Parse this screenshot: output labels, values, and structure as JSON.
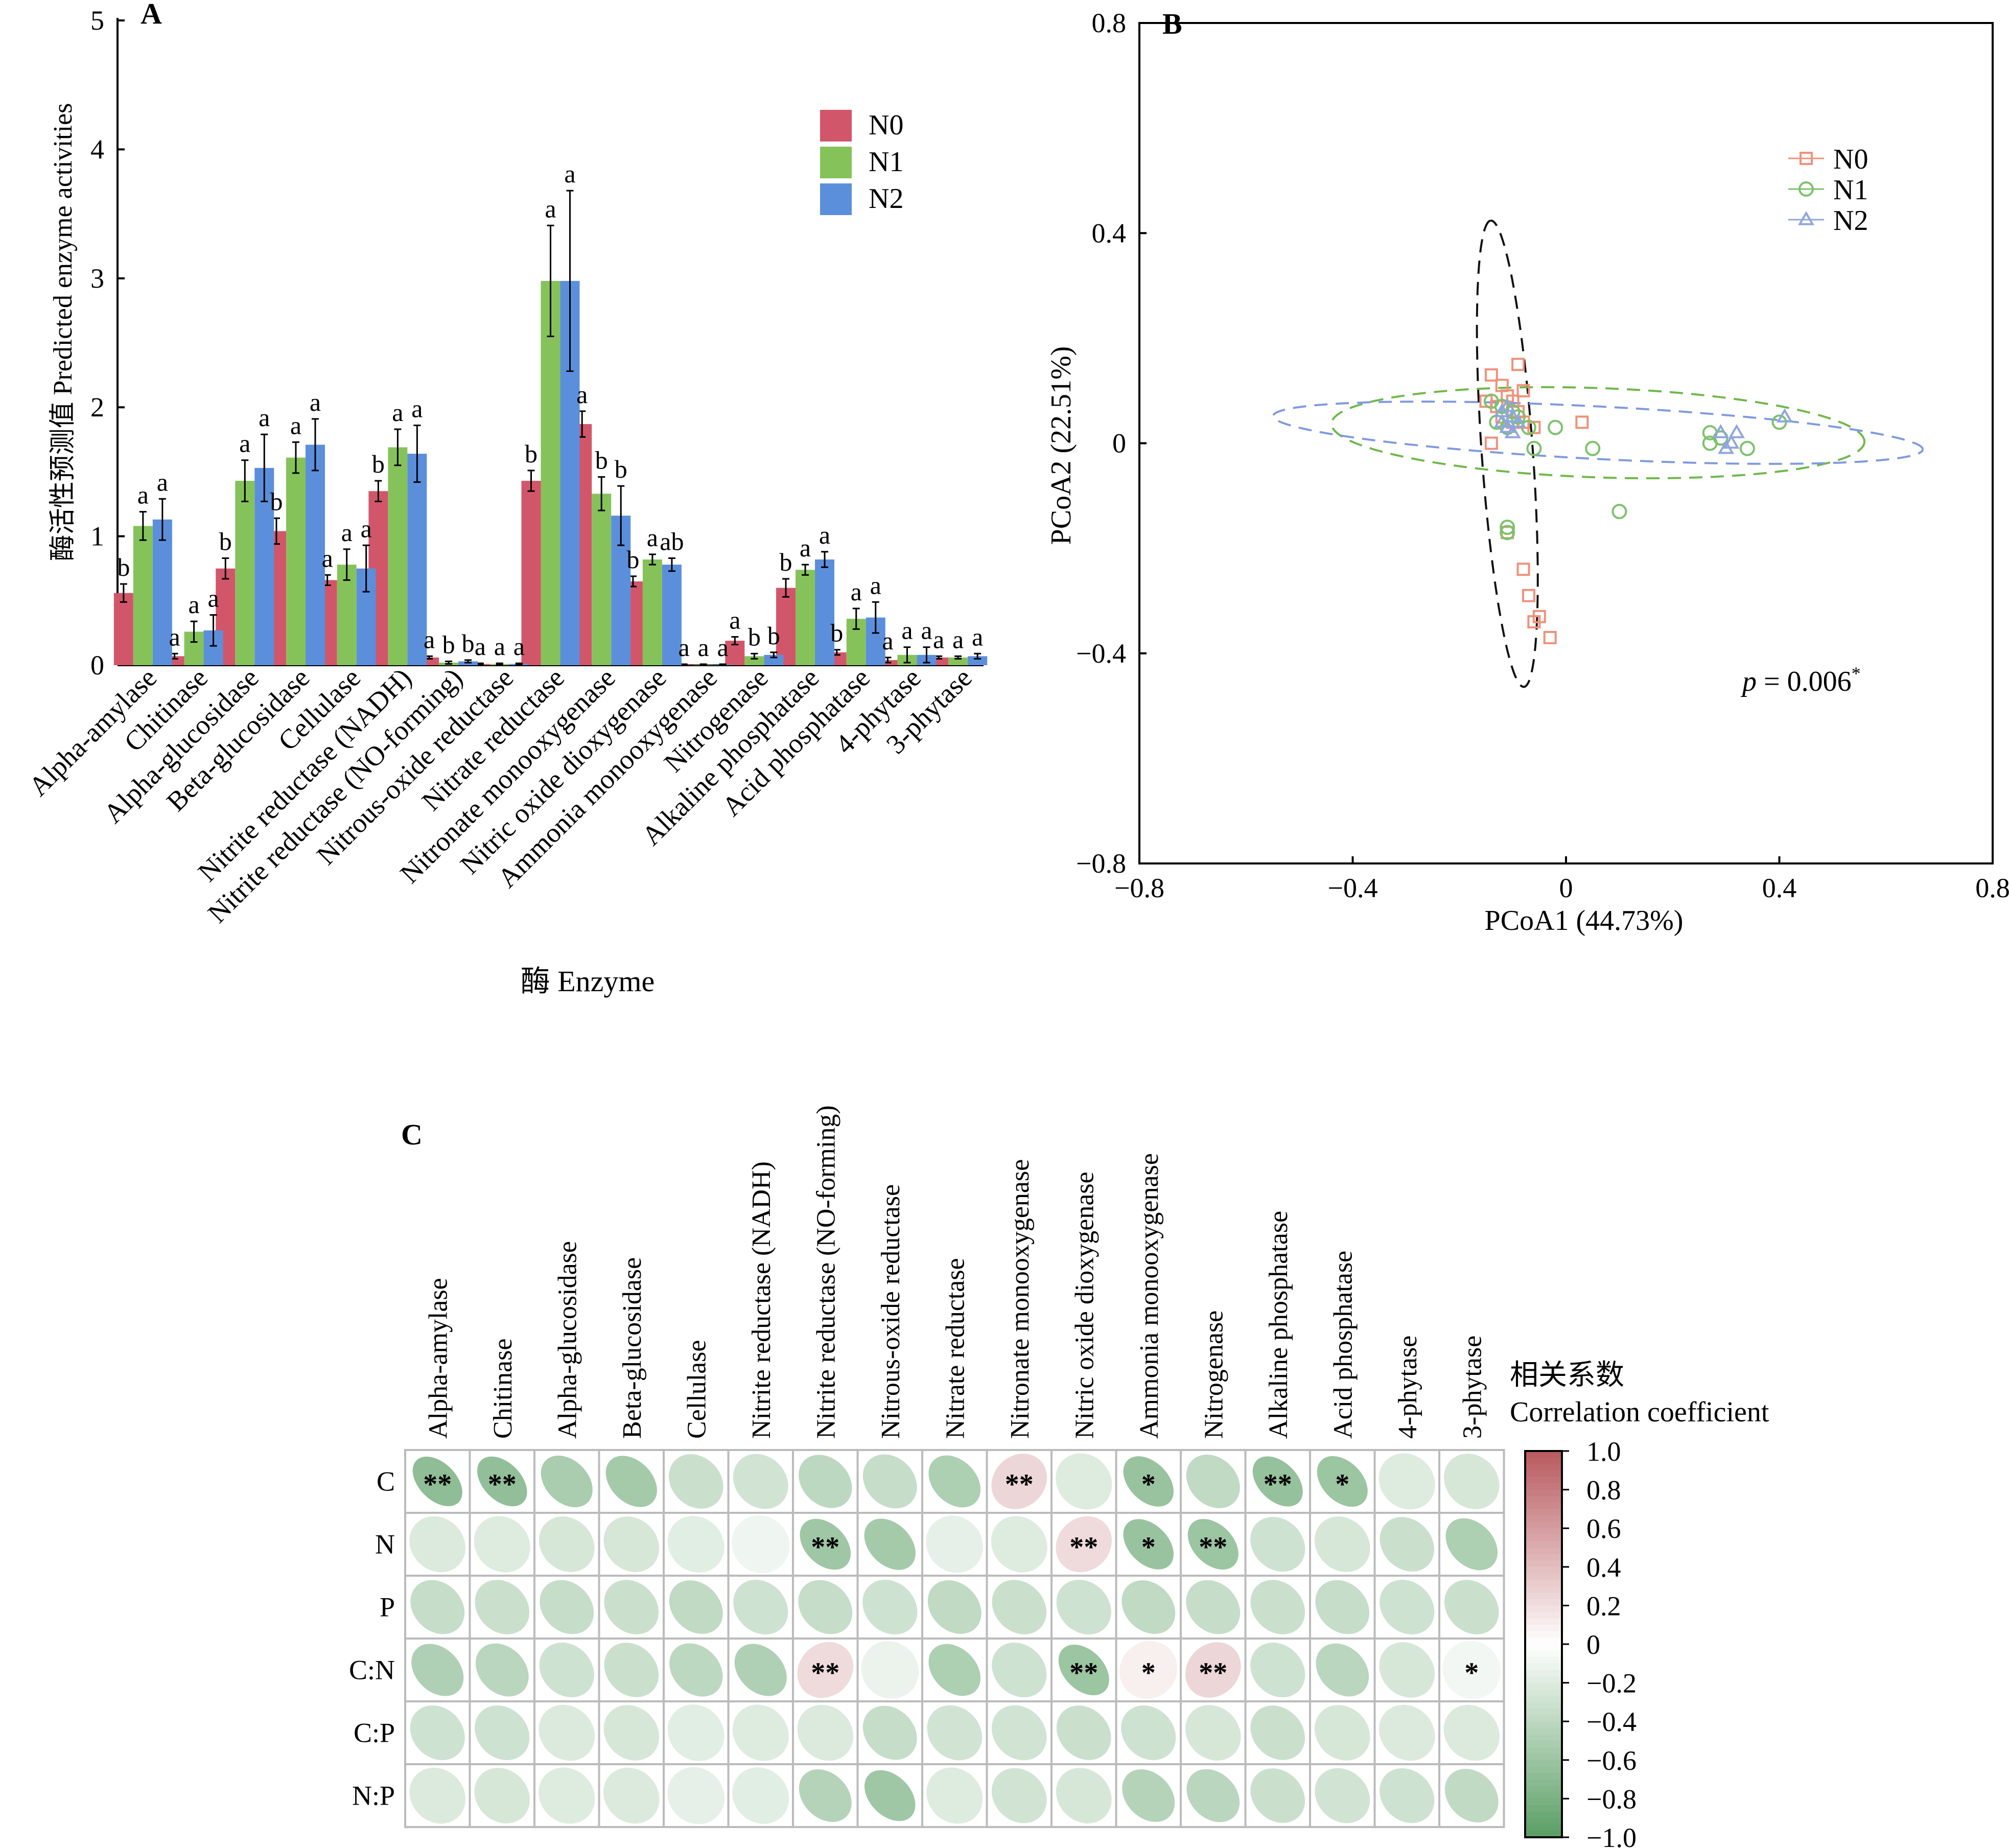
{
  "panels": {
    "a": "A",
    "b": "B",
    "c": "C"
  },
  "chart_data": [
    {
      "panel": "A",
      "type": "bar",
      "xlabel": "酶 Enzyme",
      "ylabel": "酶活性预测值 Predicted enzyme activities",
      "ylim": [
        0,
        5
      ],
      "yticks": [
        "0",
        "1",
        "2",
        "3",
        "4",
        "5"
      ],
      "legend_position": "top-right",
      "categories": [
        "Alpha-amylase",
        "Chitinase",
        "Alpha-glucosidase",
        "Beta-glucosidase",
        "Cellulase",
        "Nitrite reductase (NADH)",
        "Nitrite reductase (NO-forming)",
        "Nitrous-oxide reductase",
        "Nitrate reductase",
        "Nitronate monooxygenase",
        "Nitric oxide dioxygenase",
        "Ammonia monooxygenase",
        "Nitrogenase",
        "Alkaline phosphatase",
        "Acid phosphatase",
        "4-phytase",
        "3-phytase"
      ],
      "series": [
        {
          "name": "N0",
          "color": "#d2566a",
          "values": [
            0.56,
            0.07,
            0.75,
            1.04,
            0.66,
            1.35,
            0.06,
            0.01,
            1.43,
            1.87,
            0.65,
            0.005,
            0.19,
            0.6,
            0.1,
            0.04,
            0.06
          ],
          "errors": [
            0.07,
            0.02,
            0.08,
            0.1,
            0.04,
            0.08,
            0.01,
            0.005,
            0.08,
            0.1,
            0.04,
            0.003,
            0.03,
            0.07,
            0.02,
            0.02,
            0.01
          ],
          "letters": [
            "b",
            "a",
            "b",
            "b",
            "a",
            "b",
            "a",
            "a",
            "b",
            "a",
            "b",
            "a",
            "a",
            "b",
            "b",
            "a",
            "a"
          ]
        },
        {
          "name": "N1",
          "color": "#86c25a",
          "values": [
            1.08,
            0.26,
            1.43,
            1.61,
            0.78,
            1.69,
            0.02,
            0.01,
            2.98,
            1.33,
            0.82,
            0.005,
            0.07,
            0.74,
            0.36,
            0.08,
            0.06
          ],
          "errors": [
            0.11,
            0.08,
            0.16,
            0.12,
            0.12,
            0.14,
            0.01,
            0.005,
            0.43,
            0.13,
            0.04,
            0.003,
            0.02,
            0.04,
            0.08,
            0.06,
            0.01
          ],
          "letters": [
            "a",
            "a",
            "a",
            "a",
            "a",
            "a",
            "b",
            "a",
            "a",
            "b",
            "a",
            "a",
            "b",
            "a",
            "a",
            "a",
            "a"
          ]
        },
        {
          "name": "N2",
          "color": "#5b8fdc",
          "values": [
            1.13,
            0.27,
            1.53,
            1.71,
            0.75,
            1.64,
            0.03,
            0.01,
            2.98,
            1.16,
            0.78,
            0.005,
            0.08,
            0.82,
            0.37,
            0.08,
            0.07
          ],
          "errors": [
            0.16,
            0.12,
            0.26,
            0.2,
            0.18,
            0.22,
            0.01,
            0.005,
            0.7,
            0.23,
            0.05,
            0.003,
            0.02,
            0.06,
            0.12,
            0.06,
            0.02
          ],
          "letters": [
            "a",
            "a",
            "a",
            "a",
            "a",
            "a",
            "b",
            "a",
            "a",
            "b",
            "ab",
            "a",
            "b",
            "a",
            "a",
            "a",
            "a"
          ]
        }
      ]
    },
    {
      "panel": "B",
      "type": "scatter",
      "xlabel": "PCoA1 (44.73%)",
      "ylabel": "PCoA2 (22.51%)",
      "xlim": [
        -0.8,
        0.8
      ],
      "ylim": [
        -0.8,
        0.8
      ],
      "xticks": [
        "−0.8",
        "−0.4",
        "0",
        "0.4",
        "0.8"
      ],
      "yticks": [
        "0.8",
        "0.4",
        "0",
        "−0.4",
        "−0.8"
      ],
      "legend_position": "top-right",
      "annotation": {
        "p": "p",
        "eq": " = 0.006",
        "star": "*"
      },
      "series": [
        {
          "name": "N0",
          "marker": "square",
          "color": "#f0917a",
          "points": [
            [
              -0.09,
              0.15
            ],
            [
              -0.14,
              0.13
            ],
            [
              -0.12,
              0.11
            ],
            [
              -0.08,
              0.1
            ],
            [
              -0.11,
              0.09
            ],
            [
              -0.1,
              0.08
            ],
            [
              -0.13,
              0.07
            ],
            [
              -0.15,
              0.08
            ],
            [
              -0.09,
              0.06
            ],
            [
              -0.12,
              0.05
            ],
            [
              -0.1,
              0.04
            ],
            [
              -0.08,
              0.04
            ],
            [
              -0.06,
              0.03
            ],
            [
              0.03,
              0.04
            ],
            [
              -0.14,
              0.0
            ],
            [
              -0.11,
              -0.17
            ],
            [
              -0.08,
              -0.24
            ],
            [
              -0.07,
              -0.29
            ],
            [
              -0.05,
              -0.33
            ],
            [
              -0.06,
              -0.34
            ],
            [
              -0.03,
              -0.37
            ]
          ]
        },
        {
          "name": "N1",
          "color": "#7cc26a",
          "marker": "circle",
          "points": [
            [
              -0.14,
              0.08
            ],
            [
              -0.12,
              0.07
            ],
            [
              -0.1,
              0.06
            ],
            [
              -0.13,
              0.04
            ],
            [
              -0.09,
              0.05
            ],
            [
              -0.07,
              0.03
            ],
            [
              -0.02,
              0.03
            ],
            [
              -0.11,
              0.03
            ],
            [
              -0.06,
              -0.01
            ],
            [
              0.05,
              -0.01
            ],
            [
              0.27,
              0.02
            ],
            [
              0.27,
              0.0
            ],
            [
              0.29,
              0.01
            ],
            [
              0.34,
              -0.01
            ],
            [
              0.4,
              0.04
            ],
            [
              0.1,
              -0.13
            ],
            [
              -0.11,
              -0.16
            ],
            [
              -0.11,
              -0.17
            ]
          ]
        },
        {
          "name": "N2",
          "color": "#8fa6dc",
          "marker": "triangle",
          "points": [
            [
              -0.11,
              0.07
            ],
            [
              -0.12,
              0.06
            ],
            [
              -0.1,
              0.05
            ],
            [
              -0.12,
              0.04
            ],
            [
              -0.09,
              0.04
            ],
            [
              -0.11,
              0.03
            ],
            [
              -0.1,
              0.02
            ],
            [
              0.29,
              0.02
            ],
            [
              0.31,
              0.0
            ],
            [
              0.32,
              0.02
            ],
            [
              0.3,
              -0.01
            ],
            [
              0.41,
              0.05
            ]
          ]
        }
      ],
      "ellipses": [
        {
          "group": "N0",
          "color": "#111111",
          "cx": -0.11,
          "cy": -0.02,
          "rx": 0.445,
          "ry": 0.048,
          "angle_deg": 94
        },
        {
          "group": "N1",
          "color": "#6fb84a",
          "cx": 0.06,
          "cy": 0.02,
          "rx": 0.5,
          "ry": 0.085,
          "angle_deg": -2
        },
        {
          "group": "N2",
          "color": "#7f9adf",
          "cx": 0.06,
          "cy": 0.02,
          "rx": 0.61,
          "ry": 0.05,
          "angle_deg": -3
        }
      ]
    },
    {
      "panel": "C",
      "type": "heatmap",
      "legend_title": [
        "相关系数",
        "Correlation coefficient"
      ],
      "color_scale": {
        "min": -1.0,
        "max": 1.0,
        "low_color": "#5a9e64",
        "mid_color": "#ffffff",
        "high_color": "#b85a5f"
      },
      "colorbar_ticks": [
        "1.0",
        "0.8",
        "0.6",
        "0.4",
        "0.2",
        "0",
        "−0.2",
        "−0.4",
        "−0.6",
        "−0.8",
        "−1.0"
      ],
      "columns": [
        "Alpha-amylase",
        "Chitinase",
        "Alpha-glucosidase",
        "Beta-glucosidase",
        "Cellulase",
        "Nitrite reductase (NADH)",
        "Nitrite reductase (NO-forming)",
        "Nitrous-oxide reductase",
        "Nitrate reductase",
        "Nitronate monooxygenase",
        "Nitric oxide dioxygenase",
        "Ammonia monooxygenase",
        "Nitrogenase",
        "Alkaline phosphatase",
        "Acid phosphatase",
        "4-phytase",
        "3-phytase"
      ],
      "rows": [
        "C",
        "N",
        "P",
        "C:N",
        "C:P",
        "N:P"
      ],
      "values": [
        [
          -0.68,
          -0.66,
          -0.52,
          -0.55,
          -0.32,
          -0.28,
          -0.4,
          -0.35,
          -0.5,
          0.25,
          -0.2,
          -0.62,
          -0.38,
          -0.64,
          -0.6,
          -0.2,
          -0.25
        ],
        [
          -0.22,
          -0.2,
          -0.25,
          -0.25,
          -0.18,
          -0.1,
          -0.58,
          -0.55,
          -0.15,
          -0.2,
          0.22,
          -0.62,
          -0.6,
          -0.3,
          -0.25,
          -0.32,
          -0.5
        ],
        [
          -0.35,
          -0.32,
          -0.35,
          -0.32,
          -0.38,
          -0.3,
          -0.35,
          -0.3,
          -0.38,
          -0.32,
          -0.3,
          -0.38,
          -0.35,
          -0.32,
          -0.35,
          -0.3,
          -0.32
        ],
        [
          -0.48,
          -0.42,
          -0.3,
          -0.32,
          -0.4,
          -0.48,
          0.22,
          -0.12,
          -0.5,
          -0.3,
          -0.6,
          0.1,
          0.25,
          -0.3,
          -0.42,
          -0.25,
          -0.08
        ],
        [
          -0.3,
          -0.3,
          -0.22,
          -0.25,
          -0.18,
          -0.2,
          -0.22,
          -0.35,
          -0.28,
          -0.28,
          -0.32,
          -0.3,
          -0.25,
          -0.32,
          -0.25,
          -0.22,
          -0.22
        ],
        [
          -0.22,
          -0.25,
          -0.2,
          -0.22,
          -0.15,
          -0.18,
          -0.45,
          -0.58,
          -0.2,
          -0.28,
          -0.25,
          -0.45,
          -0.42,
          -0.32,
          -0.28,
          -0.3,
          -0.38
        ]
      ],
      "significance": [
        [
          "**",
          "**",
          "",
          "",
          "",
          "",
          "",
          "",
          "",
          "**",
          "",
          "*",
          "",
          "**",
          "*",
          "",
          ""
        ],
        [
          "",
          "",
          "",
          "",
          "",
          "",
          "**",
          "",
          "",
          "",
          "**",
          "*",
          "**",
          "",
          "",
          "",
          ""
        ],
        [
          "",
          "",
          "",
          "",
          "",
          "",
          "",
          "",
          "",
          "",
          "",
          "",
          "",
          "",
          "",
          "",
          ""
        ],
        [
          "",
          "",
          "",
          "",
          "",
          "",
          "**",
          "",
          "",
          "",
          "**",
          "*",
          "**",
          "",
          "",
          "",
          "*"
        ],
        [
          "",
          "",
          "",
          "",
          "",
          "",
          "",
          "",
          "",
          "",
          "",
          "",
          "",
          "",
          "",
          "",
          ""
        ],
        [
          "",
          "",
          "",
          "",
          "",
          "",
          "",
          "",
          "",
          "",
          "",
          "",
          "",
          "",
          "",
          "",
          ""
        ]
      ]
    }
  ]
}
